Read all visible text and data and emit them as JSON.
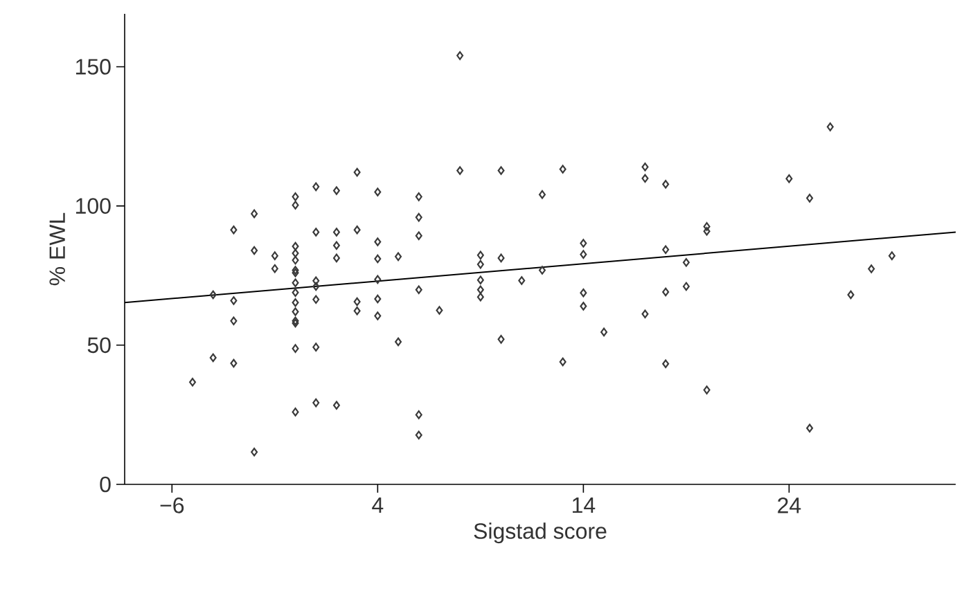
{
  "chart_data": {
    "type": "scatter",
    "xlabel": "Sigstad score",
    "ylabel": "% EWL",
    "xlim": [
      -8.3,
      32.1
    ],
    "ylim": [
      0,
      169
    ],
    "xticks": [
      {
        "value": -6,
        "label": "−6"
      },
      4,
      14,
      24
    ],
    "yticks": [
      0,
      50,
      100,
      150
    ],
    "grid": false,
    "marker": "diamond",
    "series": [
      {
        "color": "#3a3a3a",
        "x": [
          -5,
          -4,
          -4,
          -3,
          -3,
          -3,
          -3,
          -2,
          -2,
          -2,
          -1,
          -1,
          0,
          0,
          0,
          0,
          0,
          0,
          0,
          0,
          0,
          0,
          0,
          0,
          0,
          0,
          0,
          1,
          1,
          1,
          1,
          1,
          1,
          1,
          2,
          2,
          2,
          2,
          2,
          3,
          3,
          3,
          3,
          4,
          4,
          4,
          4,
          4,
          4,
          5,
          5,
          6,
          6,
          6,
          6,
          6,
          6,
          7,
          8,
          8,
          9,
          9,
          9,
          9,
          9,
          10,
          10,
          10,
          11,
          12,
          12,
          13,
          13,
          14,
          14,
          14,
          14,
          15,
          17,
          17,
          17,
          18,
          18,
          18,
          18,
          19,
          19,
          20,
          20,
          20,
          24,
          25,
          25,
          26,
          27,
          28,
          29
        ],
        "values": [
          36.7,
          68.1,
          45.5,
          91.4,
          66,
          58.7,
          43.5,
          97.2,
          84,
          11.6,
          82.1,
          77.5,
          103.3,
          100.3,
          85.5,
          83,
          80.5,
          76.9,
          76,
          72.4,
          68.9,
          65.3,
          62,
          58.7,
          57.9,
          48.8,
          26,
          106.9,
          90.6,
          73.1,
          71.1,
          66.4,
          49.3,
          29.3,
          105.5,
          90.6,
          85.8,
          81.3,
          28.4,
          112.1,
          91.4,
          65.6,
          62.3,
          105,
          87.1,
          81,
          73.6,
          66.6,
          60.5,
          51.2,
          81.8,
          103.3,
          95.9,
          89.3,
          69.9,
          25,
          17.7,
          62.5,
          154,
          112.7,
          82.3,
          79,
          73.4,
          69.9,
          67.3,
          112.7,
          81.3,
          52.1,
          73.2,
          104.1,
          76.9,
          113.2,
          44,
          86.6,
          82.6,
          68.8,
          64,
          54.7,
          114,
          109.9,
          61.2,
          107.8,
          84.3,
          69.1,
          43.3,
          79.7,
          71.1,
          92.6,
          90.9,
          33.9,
          109.8,
          102.8,
          20.2,
          128.4,
          68.1,
          77.4,
          82.1
        ]
      },
      {
        "type": "line",
        "marker": "none",
        "color": "#000000",
        "x": [
          -8.3,
          32.1
        ],
        "values": [
          65.3,
          90.6
        ]
      }
    ]
  }
}
